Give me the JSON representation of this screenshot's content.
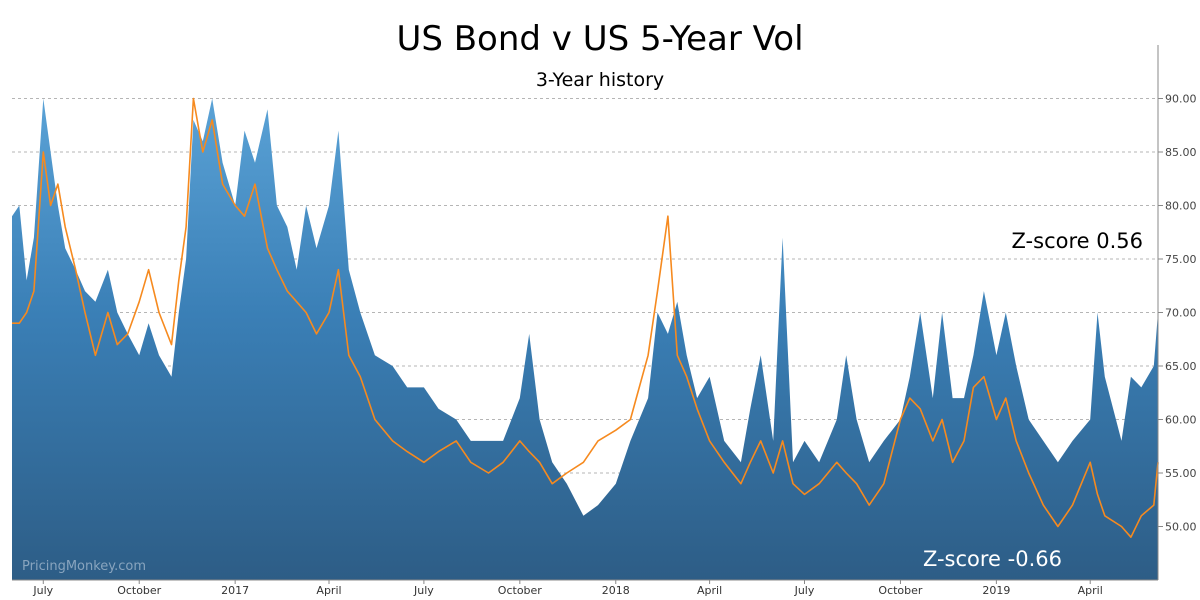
{
  "chart_data": {
    "type": "area",
    "title": "US Bond v US 5-Year Vol",
    "subtitle": "3-Year history",
    "xlabel": "",
    "ylabel": "",
    "ylim": [
      45,
      95
    ],
    "y_ticks": [
      "50.00",
      "55.00",
      "60.00",
      "65.00",
      "70.00",
      "75.00",
      "80.00",
      "85.00",
      "90.00"
    ],
    "y_axis_position": "right",
    "grid": true,
    "x_tick_labels": [
      "July",
      "October",
      "2017",
      "April",
      "July",
      "October",
      "2018",
      "April",
      "July",
      "October",
      "2019",
      "April"
    ],
    "x_ticks": [
      "2016-07-01",
      "2016-10-01",
      "2017-01-01",
      "2017-04-01",
      "2017-07-01",
      "2017-10-01",
      "2018-01-01",
      "2018-04-01",
      "2018-07-01",
      "2018-10-01",
      "2019-01-01",
      "2019-04-01"
    ],
    "x_range": [
      "2016-06-01",
      "2019-06-05"
    ],
    "series": [
      {
        "color": "#3a80b6",
        "style": "area",
        "points": [
          [
            "2016-06-01",
            79
          ],
          [
            "2016-06-08",
            80
          ],
          [
            "2016-06-15",
            73
          ],
          [
            "2016-06-22",
            77
          ],
          [
            "2016-07-01",
            90
          ],
          [
            "2016-07-08",
            85
          ],
          [
            "2016-07-15",
            80
          ],
          [
            "2016-07-22",
            76
          ],
          [
            "2016-08-01",
            74
          ],
          [
            "2016-08-10",
            72
          ],
          [
            "2016-08-20",
            71
          ],
          [
            "2016-09-01",
            74
          ],
          [
            "2016-09-10",
            70
          ],
          [
            "2016-09-20",
            68
          ],
          [
            "2016-10-01",
            66
          ],
          [
            "2016-10-10",
            69
          ],
          [
            "2016-10-20",
            66
          ],
          [
            "2016-11-01",
            64
          ],
          [
            "2016-11-08",
            70
          ],
          [
            "2016-11-15",
            75
          ],
          [
            "2016-11-22",
            88
          ],
          [
            "2016-12-01",
            86
          ],
          [
            "2016-12-10",
            90
          ],
          [
            "2016-12-20",
            84
          ],
          [
            "2017-01-01",
            80
          ],
          [
            "2017-01-10",
            87
          ],
          [
            "2017-01-20",
            84
          ],
          [
            "2017-02-01",
            89
          ],
          [
            "2017-02-10",
            80
          ],
          [
            "2017-02-20",
            78
          ],
          [
            "2017-03-01",
            74
          ],
          [
            "2017-03-10",
            80
          ],
          [
            "2017-03-20",
            76
          ],
          [
            "2017-04-01",
            80
          ],
          [
            "2017-04-10",
            87
          ],
          [
            "2017-04-20",
            74
          ],
          [
            "2017-05-01",
            70
          ],
          [
            "2017-05-15",
            66
          ],
          [
            "2017-06-01",
            65
          ],
          [
            "2017-06-15",
            63
          ],
          [
            "2017-07-01",
            63
          ],
          [
            "2017-07-15",
            61
          ],
          [
            "2017-08-01",
            60
          ],
          [
            "2017-08-15",
            58
          ],
          [
            "2017-09-01",
            58
          ],
          [
            "2017-09-15",
            58
          ],
          [
            "2017-10-01",
            62
          ],
          [
            "2017-10-10",
            68
          ],
          [
            "2017-10-20",
            60
          ],
          [
            "2017-11-01",
            56
          ],
          [
            "2017-11-15",
            54
          ],
          [
            "2017-12-01",
            51
          ],
          [
            "2017-12-15",
            52
          ],
          [
            "2018-01-01",
            54
          ],
          [
            "2018-01-15",
            58
          ],
          [
            "2018-02-01",
            62
          ],
          [
            "2018-02-10",
            70
          ],
          [
            "2018-02-20",
            68
          ],
          [
            "2018-03-01",
            71
          ],
          [
            "2018-03-10",
            66
          ],
          [
            "2018-03-20",
            62
          ],
          [
            "2018-04-01",
            64
          ],
          [
            "2018-04-15",
            58
          ],
          [
            "2018-05-01",
            56
          ],
          [
            "2018-05-10",
            61
          ],
          [
            "2018-05-20",
            66
          ],
          [
            "2018-06-01",
            58
          ],
          [
            "2018-06-10",
            77
          ],
          [
            "2018-06-20",
            56
          ],
          [
            "2018-07-01",
            58
          ],
          [
            "2018-07-15",
            56
          ],
          [
            "2018-08-01",
            60
          ],
          [
            "2018-08-10",
            66
          ],
          [
            "2018-08-20",
            60
          ],
          [
            "2018-09-01",
            56
          ],
          [
            "2018-09-15",
            58
          ],
          [
            "2018-10-01",
            60
          ],
          [
            "2018-10-10",
            64
          ],
          [
            "2018-10-20",
            70
          ],
          [
            "2018-11-01",
            62
          ],
          [
            "2018-11-10",
            70
          ],
          [
            "2018-11-20",
            62
          ],
          [
            "2018-12-01",
            62
          ],
          [
            "2018-12-10",
            66
          ],
          [
            "2018-12-20",
            72
          ],
          [
            "2019-01-01",
            66
          ],
          [
            "2019-01-10",
            70
          ],
          [
            "2019-01-20",
            65
          ],
          [
            "2019-02-01",
            60
          ],
          [
            "2019-02-15",
            58
          ],
          [
            "2019-03-01",
            56
          ],
          [
            "2019-03-15",
            58
          ],
          [
            "2019-04-01",
            60
          ],
          [
            "2019-04-08",
            70
          ],
          [
            "2019-04-15",
            64
          ],
          [
            "2019-05-01",
            58
          ],
          [
            "2019-05-10",
            64
          ],
          [
            "2019-05-20",
            63
          ],
          [
            "2019-06-01",
            65
          ],
          [
            "2019-06-05",
            70
          ]
        ]
      },
      {
        "color": "#f68a1f",
        "style": "line",
        "points": [
          [
            "2016-06-01",
            69
          ],
          [
            "2016-06-08",
            69
          ],
          [
            "2016-06-15",
            70
          ],
          [
            "2016-06-22",
            72
          ],
          [
            "2016-07-01",
            85
          ],
          [
            "2016-07-08",
            80
          ],
          [
            "2016-07-15",
            82
          ],
          [
            "2016-07-22",
            78
          ],
          [
            "2016-08-01",
            74
          ],
          [
            "2016-08-10",
            70
          ],
          [
            "2016-08-20",
            66
          ],
          [
            "2016-09-01",
            70
          ],
          [
            "2016-09-10",
            67
          ],
          [
            "2016-09-20",
            68
          ],
          [
            "2016-10-01",
            71
          ],
          [
            "2016-10-10",
            74
          ],
          [
            "2016-10-20",
            70
          ],
          [
            "2016-11-01",
            67
          ],
          [
            "2016-11-08",
            73
          ],
          [
            "2016-11-15",
            78
          ],
          [
            "2016-11-22",
            90
          ],
          [
            "2016-12-01",
            85
          ],
          [
            "2016-12-10",
            88
          ],
          [
            "2016-12-20",
            82
          ],
          [
            "2017-01-01",
            80
          ],
          [
            "2017-01-10",
            79
          ],
          [
            "2017-01-20",
            82
          ],
          [
            "2017-02-01",
            76
          ],
          [
            "2017-02-10",
            74
          ],
          [
            "2017-02-20",
            72
          ],
          [
            "2017-03-01",
            71
          ],
          [
            "2017-03-10",
            70
          ],
          [
            "2017-03-20",
            68
          ],
          [
            "2017-04-01",
            70
          ],
          [
            "2017-04-10",
            74
          ],
          [
            "2017-04-20",
            66
          ],
          [
            "2017-05-01",
            64
          ],
          [
            "2017-05-15",
            60
          ],
          [
            "2017-06-01",
            58
          ],
          [
            "2017-06-15",
            57
          ],
          [
            "2017-07-01",
            56
          ],
          [
            "2017-07-15",
            57
          ],
          [
            "2017-08-01",
            58
          ],
          [
            "2017-08-15",
            56
          ],
          [
            "2017-09-01",
            55
          ],
          [
            "2017-09-15",
            56
          ],
          [
            "2017-10-01",
            58
          ],
          [
            "2017-10-10",
            57
          ],
          [
            "2017-10-20",
            56
          ],
          [
            "2017-11-01",
            54
          ],
          [
            "2017-11-15",
            55
          ],
          [
            "2017-12-01",
            56
          ],
          [
            "2017-12-15",
            58
          ],
          [
            "2018-01-01",
            59
          ],
          [
            "2018-01-15",
            60
          ],
          [
            "2018-02-01",
            66
          ],
          [
            "2018-02-10",
            72
          ],
          [
            "2018-02-20",
            79
          ],
          [
            "2018-03-01",
            66
          ],
          [
            "2018-03-10",
            64
          ],
          [
            "2018-03-20",
            61
          ],
          [
            "2018-04-01",
            58
          ],
          [
            "2018-04-15",
            56
          ],
          [
            "2018-05-01",
            54
          ],
          [
            "2018-05-10",
            56
          ],
          [
            "2018-05-20",
            58
          ],
          [
            "2018-06-01",
            55
          ],
          [
            "2018-06-10",
            58
          ],
          [
            "2018-06-20",
            54
          ],
          [
            "2018-07-01",
            53
          ],
          [
            "2018-07-15",
            54
          ],
          [
            "2018-08-01",
            56
          ],
          [
            "2018-08-10",
            55
          ],
          [
            "2018-08-20",
            54
          ],
          [
            "2018-09-01",
            52
          ],
          [
            "2018-09-15",
            54
          ],
          [
            "2018-10-01",
            60
          ],
          [
            "2018-10-10",
            62
          ],
          [
            "2018-10-20",
            61
          ],
          [
            "2018-11-01",
            58
          ],
          [
            "2018-11-10",
            60
          ],
          [
            "2018-11-20",
            56
          ],
          [
            "2018-12-01",
            58
          ],
          [
            "2018-12-10",
            63
          ],
          [
            "2018-12-20",
            64
          ],
          [
            "2019-01-01",
            60
          ],
          [
            "2019-01-10",
            62
          ],
          [
            "2019-01-20",
            58
          ],
          [
            "2019-02-01",
            55
          ],
          [
            "2019-02-15",
            52
          ],
          [
            "2019-03-01",
            50
          ],
          [
            "2019-03-15",
            52
          ],
          [
            "2019-04-01",
            56
          ],
          [
            "2019-04-08",
            53
          ],
          [
            "2019-04-15",
            51
          ],
          [
            "2019-05-01",
            50
          ],
          [
            "2019-05-10",
            49
          ],
          [
            "2019-05-20",
            51
          ],
          [
            "2019-06-01",
            52
          ],
          [
            "2019-06-05",
            56
          ]
        ]
      }
    ],
    "annotations": [
      {
        "text": "Z-score 0.56",
        "color": "#000000",
        "placement": "top-right"
      },
      {
        "text": "Z-score -0.66",
        "color": "#ffffff",
        "placement": "bottom-right"
      }
    ],
    "watermark": "PricingMonkey.com"
  }
}
